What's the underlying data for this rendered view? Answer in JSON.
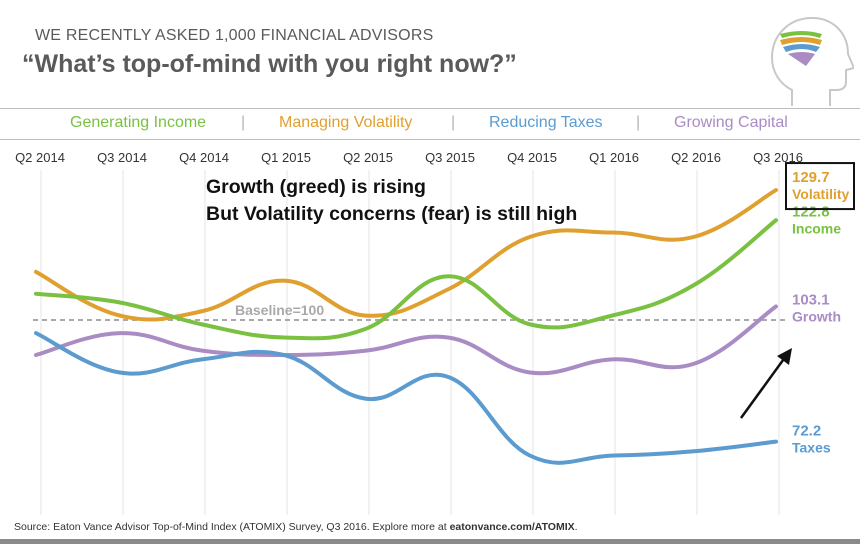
{
  "header": {
    "kicker": "WE RECENTLY ASKED 1,000 FINANCIAL ADVISORS",
    "headline": "“What’s top-of-mind with you right now?”"
  },
  "legend": {
    "items": [
      {
        "label": "Generating Income",
        "color": "#7ac142"
      },
      {
        "label": "Managing Volatility",
        "color": "#e0a030"
      },
      {
        "label": "Reducing Taxes",
        "color": "#5b9bd0"
      },
      {
        "label": "Growing Capital",
        "color": "#a98cc4"
      }
    ],
    "separator": "|"
  },
  "annotation": {
    "line1": "Growth (greed) is rising",
    "line2": "But Volatility concerns (fear) is still high"
  },
  "source": {
    "prefix": "Source: Eaton Vance Advisor Top-of-Mind Index (ATOMIX) Survey, Q3 2016. Explore more at ",
    "link": "eatonvance.com/ATOMIX",
    "suffix": "."
  },
  "chart_data": {
    "type": "line",
    "categories": [
      "Q2 2014",
      "Q3 2014",
      "Q4 2014",
      "Q1 2015",
      "Q2 2015",
      "Q3 2015",
      "Q4 2015",
      "Q1 2016",
      "Q2 2016",
      "Q3 2016"
    ],
    "ylim": [
      60,
      140
    ],
    "baseline": {
      "value": 100,
      "label": "Baseline=100"
    },
    "series": [
      {
        "name": "Managing Volatility",
        "short": "Volatility",
        "color": "#e0a030",
        "values": [
          111,
          101,
          102,
          109,
          101,
          107,
          119,
          120,
          119,
          129.7
        ],
        "end_label": "129.7"
      },
      {
        "name": "Generating Income",
        "short": "Income",
        "color": "#7ac142",
        "values": [
          106,
          104,
          99,
          96,
          98,
          110,
          99,
          101,
          108,
          122.8
        ],
        "end_label": "122.8"
      },
      {
        "name": "Growing Capital",
        "short": "Growth",
        "color": "#a98cc4",
        "values": [
          92,
          97,
          93,
          92,
          93,
          96,
          88,
          91,
          90,
          103.1
        ],
        "end_label": "103.1"
      },
      {
        "name": "Reducing Taxes",
        "short": "Taxes",
        "color": "#5b9bd0",
        "values": [
          97,
          88,
          91,
          92,
          82,
          87,
          69,
          69,
          70,
          72.2
        ],
        "end_label": "72.2"
      }
    ]
  }
}
